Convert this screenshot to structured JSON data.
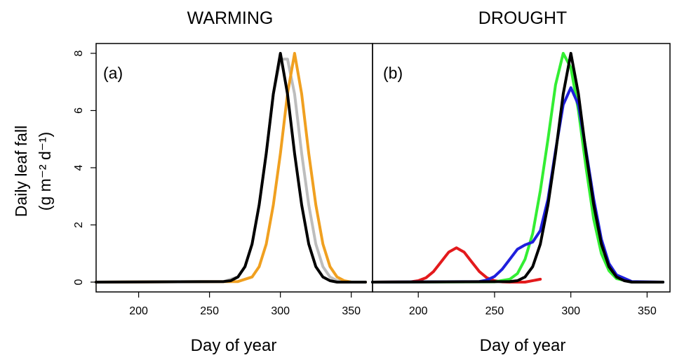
{
  "chart_data": [
    {
      "type": "line",
      "title": "WARMING",
      "panel_label": "(a)",
      "xlabel": "Day of year",
      "ylabel_line1": "Daily leaf fall",
      "ylabel_line2": "(g m⁻² d⁻¹)",
      "xlim": [
        170,
        365
      ],
      "ylim": [
        0,
        8
      ],
      "xticks": [
        200,
        250,
        300,
        350
      ],
      "yticks": [
        0,
        2,
        4,
        6,
        8
      ],
      "grid": false,
      "series": [
        {
          "color": "#bdbdbd",
          "x": [
            170,
            260,
            270,
            275,
            280,
            285,
            290,
            295,
            300,
            305,
            310,
            315,
            320,
            325,
            330,
            335,
            340,
            350,
            365
          ],
          "values": [
            0,
            0.02,
            0.18,
            0.54,
            1.33,
            2.7,
            4.5,
            6.58,
            7.8,
            7.8,
            6.58,
            4.5,
            2.7,
            1.33,
            0.54,
            0.18,
            0.05,
            0,
            0
          ]
        },
        {
          "color": "#f0a020",
          "x": [
            170,
            270,
            280,
            285,
            290,
            295,
            300,
            305,
            310,
            315,
            320,
            325,
            330,
            335,
            340,
            345,
            350,
            365
          ],
          "values": [
            0,
            0.02,
            0.18,
            0.54,
            1.33,
            2.7,
            4.5,
            6.58,
            8.0,
            6.58,
            4.5,
            2.7,
            1.33,
            0.54,
            0.18,
            0.05,
            0,
            0
          ]
        },
        {
          "color": "#000000",
          "x": [
            170,
            260,
            265,
            270,
            275,
            280,
            285,
            290,
            295,
            300,
            305,
            310,
            315,
            320,
            325,
            330,
            335,
            340,
            365
          ],
          "values": [
            0,
            0.02,
            0.05,
            0.18,
            0.54,
            1.33,
            2.7,
            4.5,
            6.58,
            8.0,
            6.58,
            4.5,
            2.7,
            1.33,
            0.54,
            0.18,
            0.05,
            0,
            0
          ]
        }
      ]
    },
    {
      "type": "line",
      "title": "DROUGHT",
      "panel_label": "(b)",
      "xlabel": "Day of year",
      "xlim": [
        170,
        365
      ],
      "ylim": [
        0,
        8
      ],
      "xticks": [
        200,
        250,
        300,
        350
      ],
      "yticks": [
        0,
        2,
        4,
        6,
        8
      ],
      "grid": false,
      "series": [
        {
          "color": "#e31a1c",
          "x": [
            170,
            195,
            200,
            205,
            210,
            215,
            220,
            225,
            230,
            235,
            240,
            245,
            250,
            255,
            260,
            270,
            280
          ],
          "values": [
            0,
            0.01,
            0.05,
            0.15,
            0.37,
            0.71,
            1.05,
            1.2,
            1.05,
            0.71,
            0.37,
            0.15,
            0.05,
            0.01,
            0,
            0,
            0.1
          ]
        },
        {
          "color": "#33ee33",
          "x": [
            170,
            250,
            260,
            265,
            270,
            275,
            280,
            285,
            290,
            295,
            300,
            305,
            310,
            315,
            320,
            325,
            330,
            340,
            365
          ],
          "values": [
            0,
            0.01,
            0.1,
            0.3,
            0.8,
            1.7,
            3.2,
            5.0,
            6.9,
            8.0,
            7.5,
            6.0,
            4.0,
            2.2,
            1.0,
            0.4,
            0.12,
            0,
            0
          ]
        },
        {
          "color": "#1f1fdd",
          "x": [
            170,
            240,
            245,
            250,
            255,
            260,
            265,
            270,
            275,
            280,
            285,
            290,
            295,
            300,
            305,
            310,
            315,
            320,
            325,
            330,
            340,
            365
          ],
          "values": [
            0,
            0.02,
            0.07,
            0.2,
            0.45,
            0.8,
            1.15,
            1.3,
            1.4,
            1.8,
            2.9,
            4.6,
            6.2,
            6.8,
            6.2,
            4.6,
            2.9,
            1.5,
            0.65,
            0.25,
            0.02,
            0
          ]
        },
        {
          "color": "#000000",
          "x": [
            170,
            260,
            265,
            270,
            275,
            280,
            285,
            290,
            295,
            300,
            305,
            310,
            315,
            320,
            325,
            330,
            335,
            340,
            365
          ],
          "values": [
            0,
            0.02,
            0.05,
            0.18,
            0.54,
            1.33,
            2.7,
            4.5,
            6.58,
            8.0,
            6.58,
            4.5,
            2.7,
            1.33,
            0.54,
            0.18,
            0.05,
            0,
            0
          ]
        }
      ]
    }
  ]
}
